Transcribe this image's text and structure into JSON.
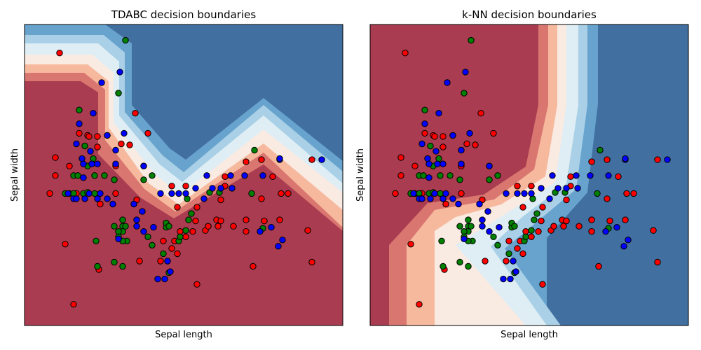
{
  "chart_data": [
    {
      "type": "scatter",
      "title": "TDABC decision boundaries",
      "xlabel": "Sepal length",
      "ylabel": "Sepal width",
      "ticks_shown": false,
      "background": "decision-boundary contour (red to blue)",
      "series": [
        {
          "color": "#ff0000",
          "points": [
            [
              4.28,
              4.38
            ],
            [
              4.82,
              3.81
            ],
            [
              4.91,
              3.62
            ],
            [
              4.42,
              3.62
            ],
            [
              4.48,
              3.6
            ],
            [
              4.55,
              3.59
            ],
            [
              4.49,
              3.59
            ],
            [
              4.72,
              3.52
            ],
            [
              4.78,
              3.51
            ],
            [
              4.55,
              3.49
            ],
            [
              4.25,
              3.39
            ],
            [
              5.72,
              3.37
            ],
            [
              5.61,
              3.35
            ],
            [
              4.35,
              3.31
            ],
            [
              4.68,
              3.31
            ],
            [
              4.25,
              3.22
            ],
            [
              4.4,
              3.05
            ],
            [
              4.21,
              3.05
            ],
            [
              4.68,
              3.05
            ],
            [
              4.83,
              2.99
            ],
            [
              5.8,
              3.21
            ],
            [
              5.46,
              3.21
            ],
            [
              5.46,
              3.12
            ],
            [
              5.08,
              3.12
            ],
            [
              5.18,
              3.12
            ],
            [
              5.91,
              3.05
            ],
            [
              5.86,
              3.05
            ],
            [
              5.72,
              3.0
            ],
            [
              5.43,
              2.99
            ],
            [
              5.26,
              2.92
            ],
            [
              5.12,
              2.92
            ],
            [
              5.25,
              2.79
            ],
            [
              5.4,
              2.8
            ],
            [
              5.61,
              2.8
            ],
            [
              5.43,
              2.79
            ],
            [
              5.34,
              2.74
            ],
            [
              5.14,
              2.69
            ],
            [
              5.23,
              2.69
            ],
            [
              5.32,
              2.7
            ],
            [
              5.34,
              2.74
            ],
            [
              5.41,
              2.74
            ],
            [
              5.52,
              2.74
            ],
            [
              5.61,
              2.69
            ],
            [
              5.18,
              2.64
            ],
            [
              5.1,
              2.6
            ],
            [
              5.02,
              2.6
            ],
            [
              5.08,
              2.53
            ],
            [
              5.12,
              2.48
            ],
            [
              5.0,
              2.41
            ],
            [
              4.85,
              2.41
            ],
            [
              5.66,
              2.36
            ],
            [
              5.26,
              2.19
            ],
            [
              4.57,
              2.95
            ],
            [
              4.32,
              2.57
            ],
            [
              4.56,
              2.33
            ],
            [
              4.38,
              2.0
            ],
            [
              5.74,
              2.79
            ],
            [
              5.85,
              2.8
            ],
            [
              6.05,
              2.7
            ],
            [
              6.08,
              3.37
            ],
            [
              6.08,
              2.4
            ]
          ]
        },
        {
          "color": "#008000",
          "points": [
            [
              4.75,
              4.5
            ],
            [
              4.7,
              4.0
            ],
            [
              4.42,
              3.84
            ],
            [
              4.62,
              3.6
            ],
            [
              4.46,
              3.5
            ],
            [
              4.52,
              3.38
            ],
            [
              4.53,
              3.22
            ],
            [
              4.67,
              3.18
            ],
            [
              4.38,
              3.22
            ],
            [
              4.48,
              3.31
            ],
            [
              4.6,
              3.22
            ],
            [
              4.88,
              3.31
            ],
            [
              4.94,
              3.22
            ],
            [
              4.88,
              3.18
            ],
            [
              4.32,
              3.05
            ],
            [
              4.35,
              3.05
            ],
            [
              4.38,
              3.05
            ],
            [
              4.45,
              3.05
            ],
            [
              4.48,
              3.06
            ],
            [
              4.53,
              3.05
            ],
            [
              4.41,
              3.22
            ],
            [
              4.73,
              2.8
            ],
            [
              4.73,
              2.74
            ],
            [
              4.73,
              2.69
            ],
            [
              4.75,
              2.74
            ],
            [
              4.67,
              2.74
            ],
            [
              4.7,
              2.69
            ],
            [
              4.7,
              2.64
            ],
            [
              4.76,
              2.6
            ],
            [
              4.73,
              2.6
            ],
            [
              4.54,
              2.6
            ],
            [
              4.55,
              2.36
            ],
            [
              4.67,
              2.4
            ],
            [
              4.73,
              2.36
            ],
            [
              4.94,
              2.56
            ],
            [
              5.13,
              2.6
            ],
            [
              4.91,
              2.64
            ],
            [
              5.02,
              2.48
            ],
            [
              5.06,
              2.3
            ],
            [
              5.04,
              2.73
            ],
            [
              5.14,
              2.64
            ],
            [
              5.18,
              2.7
            ],
            [
              5.35,
              3.06
            ],
            [
              5.42,
              3.06
            ],
            [
              5.65,
              3.05
            ],
            [
              5.67,
              3.46
            ],
            [
              5.73,
              2.72
            ],
            [
              5.2,
              2.8
            ],
            [
              5.22,
              2.86
            ],
            [
              5.19,
              3.0
            ],
            [
              5.04,
              2.77
            ],
            [
              5.06,
              2.74
            ]
          ]
        },
        {
          "color": "#0000ff",
          "points": [
            [
              4.71,
              4.2
            ],
            [
              4.58,
              4.1
            ],
            [
              4.52,
              3.81
            ],
            [
              4.74,
              3.62
            ],
            [
              4.42,
              3.71
            ],
            [
              4.62,
              3.6
            ],
            [
              4.4,
              3.52
            ],
            [
              4.5,
              3.45
            ],
            [
              4.44,
              3.38
            ],
            [
              4.45,
              3.33
            ],
            [
              4.51,
              3.33
            ],
            [
              4.55,
              3.33
            ],
            [
              4.68,
              3.33
            ],
            [
              4.88,
              3.31
            ],
            [
              4.45,
              3.2
            ],
            [
              4.34,
              3.05
            ],
            [
              4.38,
              3.0
            ],
            [
              4.4,
              3.0
            ],
            [
              4.46,
              3.0
            ],
            [
              4.49,
              3.05
            ],
            [
              4.57,
              3.05
            ],
            [
              4.55,
              3.0
            ],
            [
              4.62,
              3.0
            ],
            [
              4.66,
              2.95
            ],
            [
              4.81,
              2.95
            ],
            [
              4.87,
              2.88
            ],
            [
              4.83,
              2.8
            ],
            [
              4.83,
              2.74
            ],
            [
              4.88,
              2.69
            ],
            [
              4.7,
              2.62
            ],
            [
              5.0,
              3.05
            ],
            [
              5.08,
              3.05
            ],
            [
              5.13,
              3.05
            ],
            [
              5.18,
              3.05
            ],
            [
              5.25,
              3.1
            ],
            [
              5.31,
              3.0
            ],
            [
              5.37,
              3.1
            ],
            [
              5.43,
              3.1
            ],
            [
              5.51,
              3.1
            ],
            [
              5.33,
              3.22
            ],
            [
              5.5,
              3.22
            ],
            [
              5.6,
              3.22
            ],
            [
              5.73,
              3.22
            ],
            [
              5.85,
              3.37
            ],
            [
              6.15,
              3.37
            ],
            [
              5.85,
              3.38
            ],
            [
              5.84,
              2.55
            ],
            [
              5.71,
              2.69
            ],
            [
              5.79,
              2.73
            ],
            [
              5.87,
              2.61
            ],
            [
              5.05,
              2.41
            ],
            [
              5.07,
              2.31
            ],
            [
              4.98,
              2.24
            ],
            [
              5.03,
              2.24
            ],
            [
              4.68,
              3.46
            ],
            [
              4.95,
              2.73
            ]
          ]
        }
      ]
    },
    {
      "type": "scatter",
      "title": "k-NN decision boundaries",
      "xlabel": "Sepal length",
      "ylabel": "Sepal width",
      "ticks_shown": false,
      "background": "decision-boundary contour (red to blue)",
      "series_same_as_first_panel": true
    }
  ],
  "colors": {
    "red_region": "#a93c50",
    "blue_region": "#416fa0",
    "class_0": "#ff0000",
    "class_1": "#008000",
    "class_2": "#0000ff"
  }
}
